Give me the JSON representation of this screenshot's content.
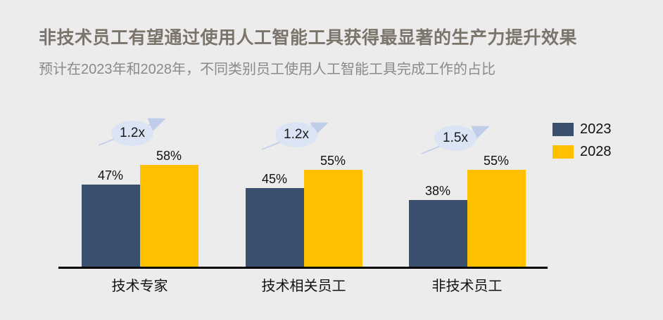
{
  "chart_data": {
    "type": "bar",
    "title": "非技术员工有望通过使用人工智能工具获得最显著的生产力提升效果",
    "subtitle": "预计在2023年和2028年，不同类别员工使用人工智能工具完成工作的占比",
    "categories": [
      "技术专家",
      "技术相关员工",
      "非技术员工"
    ],
    "series": [
      {
        "name": "2023",
        "values": [
          47,
          45,
          38
        ],
        "color": "#3B4F6E"
      },
      {
        "name": "2028",
        "values": [
          58,
          55,
          55
        ],
        "color": "#FFC000"
      }
    ],
    "value_suffix": "%",
    "multipliers": [
      "1.2x",
      "1.2x",
      "1.5x"
    ],
    "legend_position": "right",
    "y_axis_visible": false,
    "gridlines": false,
    "ylim": [
      0,
      60
    ]
  },
  "colors": {
    "background": "#ECECEC",
    "title_text": "#7B746A",
    "subtitle_text": "#8A8A8A",
    "bubble_fill": "#DAE4F5",
    "arrow": "#C5D1EB",
    "axis": "#000000",
    "label_text": "#111111"
  }
}
